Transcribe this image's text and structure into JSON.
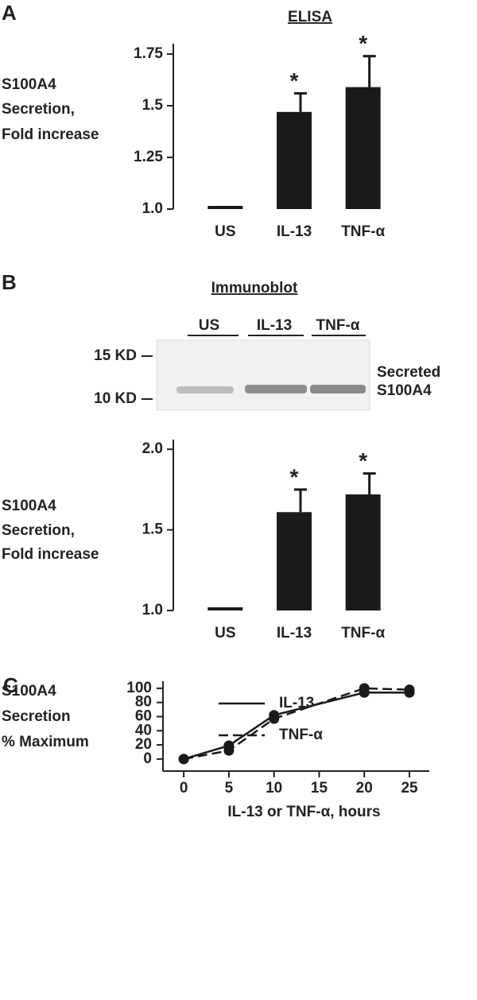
{
  "chart_data": [
    {
      "type": "bar",
      "panel": "A",
      "title": "ELISA",
      "ylabel_lines": [
        "S100A4",
        "Secretion,",
        "Fold increase"
      ],
      "categories": [
        "US",
        "IL-13",
        "TNF-α"
      ],
      "values": [
        1,
        1.47,
        1.59
      ],
      "errors": [
        0,
        0.09,
        0.15
      ],
      "color": "#1a1a1a",
      "ylim": [
        1,
        1.8
      ],
      "yticks": [
        {
          "value": 1,
          "label": "1.0"
        },
        1.25,
        1.5,
        1.75
      ],
      "annotations": [
        {
          "category": "IL-13",
          "text": "*"
        },
        {
          "category": "TNF-α",
          "text": "*"
        }
      ]
    },
    {
      "type": "bar",
      "panel": "B",
      "title": "Immunoblot",
      "blot": {
        "lanes": [
          "US",
          "IL-13",
          "TNF-α"
        ],
        "markers": [
          "15 KD",
          "10 KD"
        ],
        "label_lines": [
          "Secreted",
          "S100A4"
        ]
      },
      "ylabel_lines": [
        "S100A4",
        "Secretion,",
        "Fold increase"
      ],
      "categories": [
        "US",
        "IL-13",
        "TNF-α"
      ],
      "values": [
        1,
        1.61,
        1.72
      ],
      "errors": [
        0,
        0.14,
        0.13
      ],
      "color": "#1a1a1a",
      "ylim": [
        1,
        2.06
      ],
      "yticks": [
        {
          "value": 1,
          "label": "1.0"
        },
        1.5,
        {
          "value": 2,
          "label": "2.0"
        }
      ],
      "annotations": [
        {
          "category": "IL-13",
          "text": "*"
        },
        {
          "category": "TNF-α",
          "text": "*"
        }
      ]
    },
    {
      "type": "line",
      "panel": "C",
      "ylabel_lines": [
        "S100A4",
        "Secretion",
        "% Maximum"
      ],
      "xlabel": "IL-13 or TNF-α,  hours",
      "x": [
        0,
        5,
        10,
        20,
        25
      ],
      "series": [
        {
          "name": "IL-13",
          "color": "#1a1a1a",
          "dashed": false,
          "values": [
            0,
            19,
            62,
            94,
            94
          ]
        },
        {
          "name": "TNF-α",
          "color": "#1a1a1a",
          "dashed": true,
          "values": [
            0,
            12,
            57,
            100,
            98
          ]
        }
      ],
      "xlim": [
        -2.3,
        27.2
      ],
      "xticks": [
        0,
        5,
        10,
        15,
        20,
        25
      ],
      "ylim": [
        -17,
        110
      ],
      "yticks": [
        0,
        20,
        40,
        60,
        80,
        100
      ],
      "legend": "upper-left"
    }
  ]
}
